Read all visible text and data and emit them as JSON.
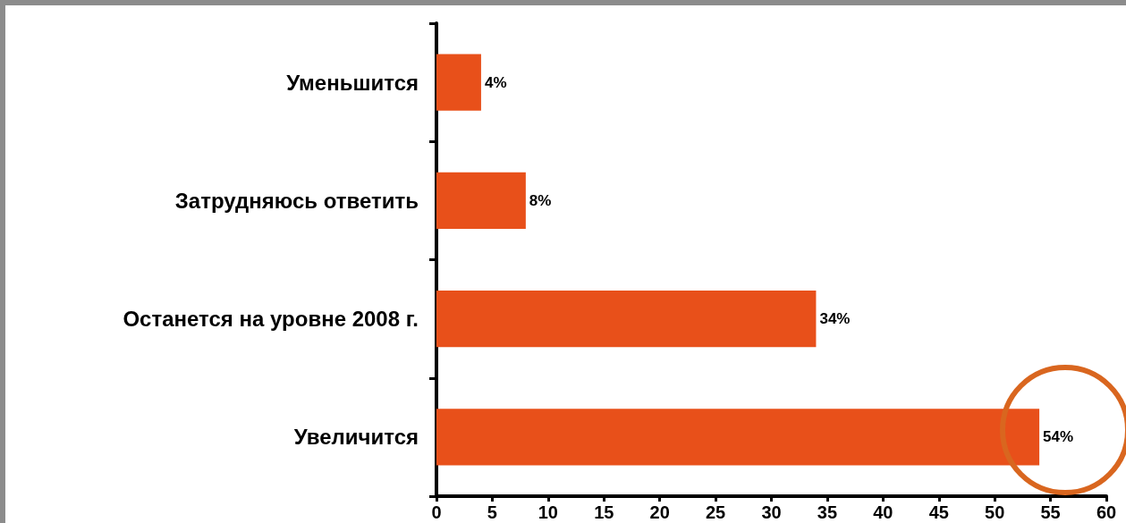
{
  "chart_data": {
    "type": "bar",
    "orientation": "horizontal",
    "categories": [
      "Уменьшится",
      "Затрудняюсь ответить",
      "Останется на уровне 2008 г.",
      "Увеличится"
    ],
    "values": [
      4,
      8,
      34,
      54
    ],
    "value_labels": [
      "4%",
      "8%",
      "34%",
      "54%"
    ],
    "color": "#e8501a",
    "xlim": [
      0,
      60
    ],
    "xticks": [
      0,
      5,
      10,
      15,
      20,
      25,
      30,
      35,
      40,
      45,
      50,
      55,
      60
    ],
    "grid": false
  }
}
